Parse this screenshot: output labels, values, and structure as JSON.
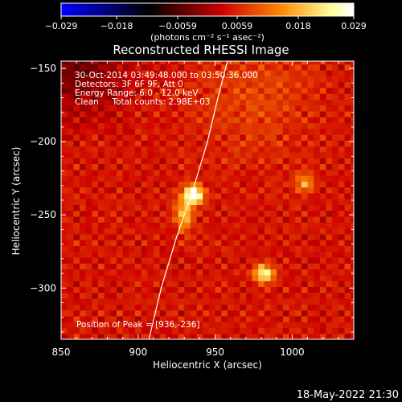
{
  "chart_data": {
    "type": "heatmap",
    "title": "Reconstructed RHESSI Image",
    "xlabel": "Heliocentric X (arcsec)",
    "ylabel": "Heliocentric Y (arcsec)",
    "xlim": [
      850,
      1040
    ],
    "ylim": [
      -335,
      -145
    ],
    "xticks": [
      850,
      900,
      950,
      1000
    ],
    "yticks": [
      -150,
      -200,
      -250,
      -300
    ],
    "colorbar": {
      "label": "(photons cm⁻² s⁻¹ asec⁻²)",
      "range": [
        -0.029,
        0.029
      ],
      "ticks": [
        "−0.029",
        "−0.018",
        "−0.0059",
        "0.0059",
        "0.018",
        "0.029"
      ],
      "tick_values": [
        -0.029,
        -0.018,
        -0.0059,
        0.0059,
        0.018,
        0.029
      ],
      "colors": [
        "#0000ff",
        "#000000",
        "#cc0000",
        "#ff8800",
        "#ffff99",
        "#ffffff"
      ]
    },
    "annotations": [
      "30-Oct-2014 03:49:48.000 to 03:50:36.000",
      "Detectors: 3F 6F 9F, Att 0",
      "Energy Range: 6.0 - 12.0 keV",
      "Clean     Total counts: 2.98E+03"
    ],
    "peak_label": "Position of Peak = [936,-236]",
    "peak": [
      936,
      -236
    ],
    "sources": [
      {
        "x": 936,
        "y": -236,
        "peak": 0.029
      },
      {
        "x": 982,
        "y": -290,
        "peak": 0.02
      },
      {
        "x": 1008,
        "y": -228,
        "peak": 0.012
      }
    ],
    "limb_curve": [
      [
        907,
        -335
      ],
      [
        915,
        -300
      ],
      [
        925,
        -265
      ],
      [
        935,
        -235
      ],
      [
        945,
        -200
      ],
      [
        953,
        -165
      ],
      [
        958,
        -145
      ]
    ]
  },
  "footer_date": "18-May-2022 21:30"
}
